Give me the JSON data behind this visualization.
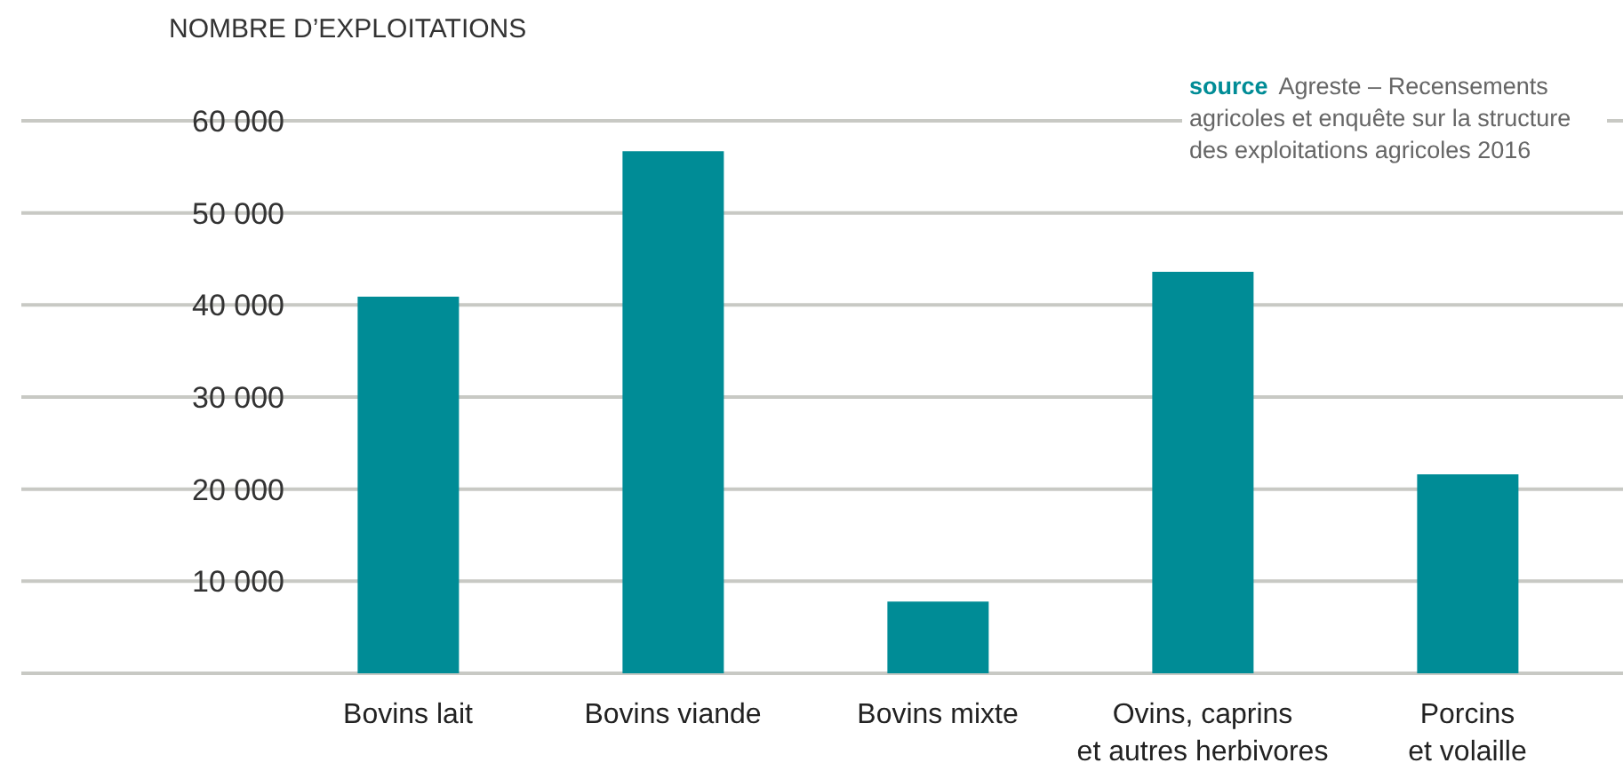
{
  "chart_data": {
    "type": "bar",
    "ylabel": "NOMBRE D’EXPLOITATIONS",
    "annotations": [
      "source",
      "Agreste – Recensements agricoles et enquête sur la structure des exploitations agricoles 2016"
    ],
    "categories": [
      "Bovins lait",
      "Bovins viande",
      "Bovins mixte",
      "Ovins, caprins\net autres herbivores",
      "Porcins\net volaille"
    ],
    "values": [
      40900,
      56700,
      7800,
      43600,
      21600
    ],
    "color": "#008c96",
    "ylim": [
      0,
      60000
    ],
    "yticks": [
      {
        "value": 0,
        "label": null
      },
      {
        "value": 10000,
        "label": "10 000"
      },
      {
        "value": 20000,
        "label": "20 000"
      },
      {
        "value": 30000,
        "label": "30 000"
      },
      {
        "value": 40000,
        "label": "40 000"
      },
      {
        "value": 50000,
        "label": "50 000"
      },
      {
        "value": 60000,
        "label": "60 000"
      }
    ],
    "grid": "y",
    "legend": false
  }
}
